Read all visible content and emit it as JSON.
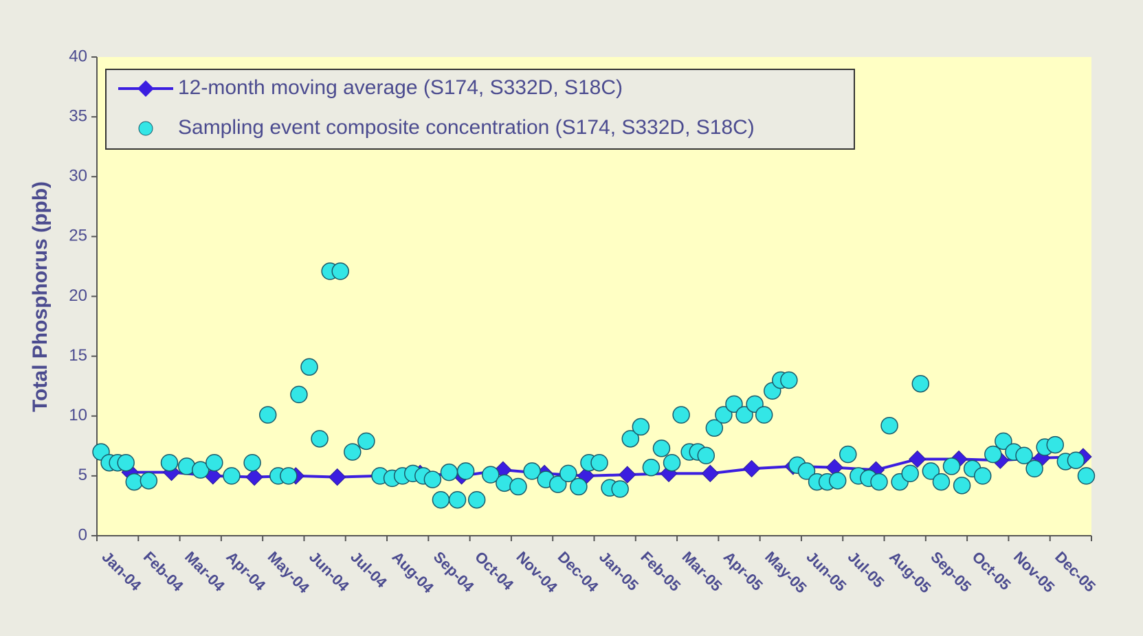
{
  "chart_data": {
    "type": "scatter",
    "y_label": "Total Phosphorus (ppb)",
    "categories": [
      "Jan-04",
      "Feb-04",
      "Mar-04",
      "Apr-04",
      "May-04",
      "Jun-04",
      "Jul-04",
      "Aug-04",
      "Sep-04",
      "Oct-04",
      "Nov-04",
      "Dec-04",
      "Jan-05",
      "Feb-05",
      "Mar-05",
      "Apr-05",
      "May-05",
      "Jun-05",
      "Jul-05",
      "Aug-05",
      "Sep-05",
      "Oct-05",
      "Nov-05",
      "Dec-05"
    ],
    "ylim": [
      0,
      40
    ],
    "yticks": [
      0,
      5,
      10,
      15,
      20,
      25,
      30,
      35,
      40
    ],
    "legend": "top-left",
    "series": [
      {
        "name": "12-month moving average (S174, S332D, S18C)",
        "type": "line",
        "color": "#3b1ee0",
        "values": [
          5.3,
          5.3,
          5.0,
          4.9,
          5.0,
          4.9,
          5.0,
          5.2,
          5.0,
          5.5,
          5.2,
          5.0,
          5.1,
          5.2,
          5.2,
          5.6,
          5.8,
          5.7,
          5.5,
          6.4,
          6.4,
          6.3,
          6.5,
          6.6
        ]
      },
      {
        "name": "Sampling event composite concentration (S174, S332D, S18C)",
        "type": "scatter",
        "color": "#33e6e6",
        "x": [
          "Jan-04",
          "Jan-04",
          "Jan-04",
          "Jan-04",
          "Jan-04",
          "Feb-04",
          "Feb-04",
          "Mar-04",
          "Mar-04",
          "Mar-04",
          "Apr-04",
          "Apr-04",
          "May-04",
          "May-04",
          "May-04",
          "May-04",
          "Jun-04",
          "Jun-04",
          "Jun-04",
          "Jun-04",
          "Jul-04",
          "Jul-04",
          "Jul-04",
          "Aug-04",
          "Aug-04",
          "Aug-04",
          "Aug-04",
          "Sep-04",
          "Sep-04",
          "Sep-04",
          "Sep-04",
          "Sep-04",
          "Oct-04",
          "Oct-04",
          "Oct-04",
          "Nov-04",
          "Nov-04",
          "Nov-04",
          "Dec-04",
          "Dec-04",
          "Dec-04",
          "Dec-04",
          "Jan-05",
          "Jan-05",
          "Jan-05",
          "Jan-05",
          "Feb-05",
          "Feb-05",
          "Feb-05",
          "Feb-05",
          "Mar-05",
          "Mar-05",
          "Mar-05",
          "Mar-05",
          "Mar-05",
          "Apr-05",
          "Apr-05",
          "Apr-05",
          "Apr-05",
          "May-05",
          "May-05",
          "May-05",
          "May-05",
          "May-05",
          "Jun-05",
          "Jun-05",
          "Jun-05",
          "Jun-05",
          "Jul-05",
          "Jul-05",
          "Jul-05",
          "Jul-05",
          "Aug-05",
          "Aug-05",
          "Aug-05",
          "Aug-05",
          "Sep-05",
          "Sep-05",
          "Sep-05",
          "Sep-05",
          "Oct-05",
          "Oct-05",
          "Oct-05",
          "Oct-05",
          "Nov-05",
          "Nov-05",
          "Nov-05",
          "Nov-05",
          "Dec-05",
          "Dec-05",
          "Dec-05",
          "Dec-05"
        ],
        "values": [
          7.0,
          6.1,
          6.1,
          6.1,
          4.5,
          4.6,
          6.1,
          5.8,
          5.5,
          6.1,
          5.0,
          6.1,
          10.1,
          5.0,
          5.0,
          11.8,
          14.1,
          8.1,
          22.1,
          22.1,
          7.0,
          7.9,
          5.0,
          4.8,
          5.0,
          5.2,
          5.0,
          4.7,
          3.0,
          5.3,
          3.0,
          5.4,
          3.0,
          5.1,
          4.4,
          4.1,
          5.4,
          4.7,
          4.3,
          5.2,
          4.1,
          6.1,
          6.1,
          4.0,
          3.9,
          8.1,
          9.1,
          5.7,
          7.3,
          6.1,
          10.1,
          7.0,
          7.0,
          6.7,
          9.0,
          10.1,
          11.0,
          10.1,
          11.0,
          10.1,
          12.1,
          13.0,
          13.0,
          5.9,
          5.4,
          4.5,
          4.5,
          4.6,
          6.8,
          5.0,
          4.8,
          4.5,
          9.2,
          4.5,
          5.2,
          12.7,
          5.4,
          4.5,
          5.8,
          4.2,
          5.6,
          5.0,
          6.8,
          7.9,
          7.0,
          6.7,
          5.6,
          7.4,
          7.6,
          6.2,
          6.3,
          5.0
        ]
      }
    ]
  }
}
